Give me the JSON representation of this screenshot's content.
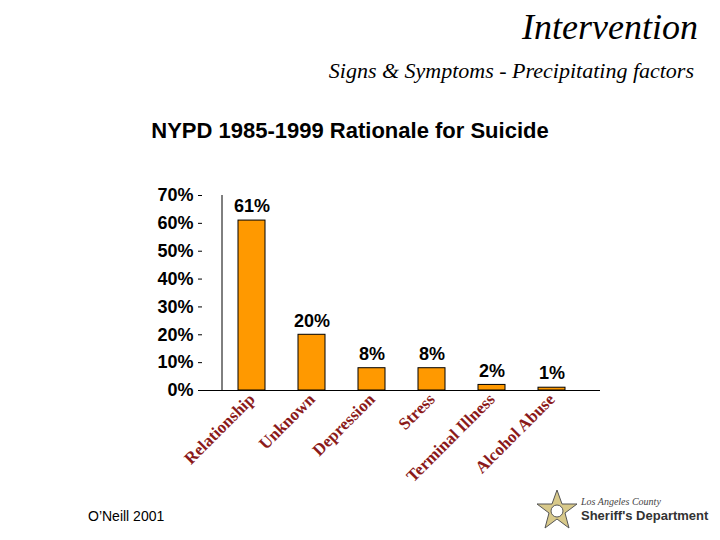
{
  "slide": {
    "title": "Intervention",
    "subtitle": "Signs & Symptoms - Precipitating factors",
    "source": "O’Neill   2001",
    "logo": [
      "Los Angeles County",
      "Sheriff's Department"
    ]
  },
  "chart_data": {
    "type": "bar",
    "title": "NYPD 1985-1999 Rationale for Suicide",
    "categories": [
      "Relationship",
      "Unknown",
      "Depression",
      "Stress",
      "Terminal Illness",
      "Alcohol Abuse"
    ],
    "values": [
      61,
      20,
      8,
      8,
      2,
      1
    ],
    "value_labels": [
      "61%",
      "20%",
      "8%",
      "8%",
      "2%",
      "1%"
    ],
    "data_labels": true,
    "color": "#ff9900",
    "ylim": [
      0,
      70
    ],
    "yticks": [
      {
        "value": 0,
        "label": "0%"
      },
      {
        "value": 10,
        "label": "10%"
      },
      {
        "value": 20,
        "label": "20%"
      },
      {
        "value": 30,
        "label": "30%"
      },
      {
        "value": 40,
        "label": "40%"
      },
      {
        "value": 50,
        "label": "50%"
      },
      {
        "value": 60,
        "label": "60%"
      },
      {
        "value": 70,
        "label": "70%"
      }
    ],
    "grid": false
  }
}
